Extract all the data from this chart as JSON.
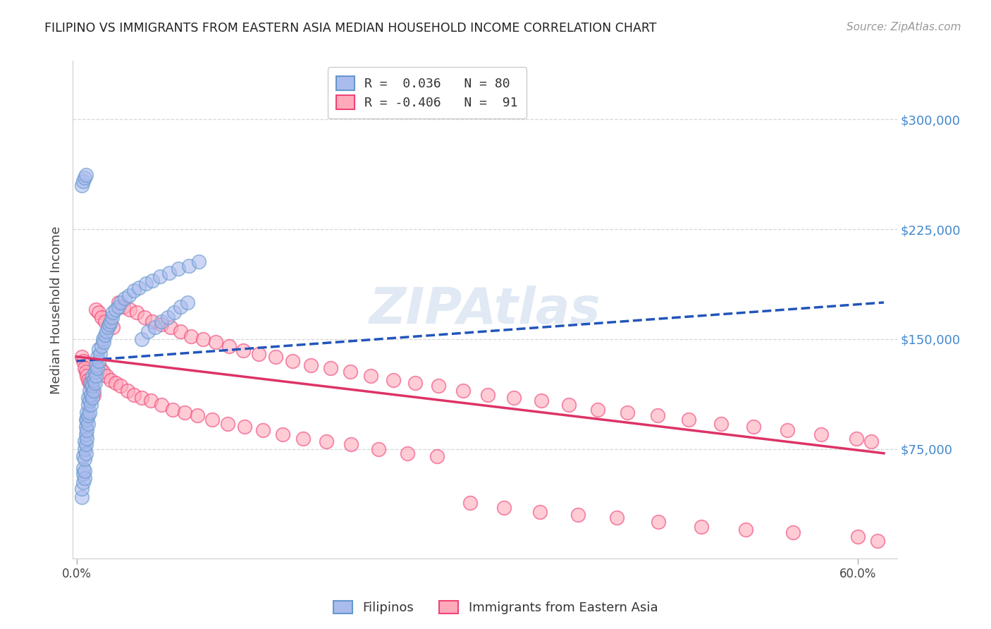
{
  "title": "FILIPINO VS IMMIGRANTS FROM EASTERN ASIA MEDIAN HOUSEHOLD INCOME CORRELATION CHART",
  "source": "Source: ZipAtlas.com",
  "ylabel": "Median Household Income",
  "yticks": [
    75000,
    150000,
    225000,
    300000
  ],
  "ytick_labels": [
    "$75,000",
    "$150,000",
    "$225,000",
    "$300,000"
  ],
  "ymin": 0,
  "ymax": 340000,
  "xmin": -0.003,
  "xmax": 0.63,
  "filipinos_label": "Filipinos",
  "immigrants_label": "Immigrants from Eastern Asia",
  "blue_color_face": "#aabbee",
  "blue_color_edge": "#6699cc",
  "pink_color_face": "#ffaabb",
  "pink_color_edge": "#ee4477",
  "blue_line_color": "#2255bb",
  "pink_line_color": "#dd3366",
  "watermark_color": "#c8d8ec",
  "blue_scatter_x": [
    0.004,
    0.004,
    0.005,
    0.005,
    0.005,
    0.005,
    0.006,
    0.006,
    0.006,
    0.006,
    0.006,
    0.007,
    0.007,
    0.007,
    0.007,
    0.007,
    0.008,
    0.008,
    0.008,
    0.008,
    0.009,
    0.009,
    0.009,
    0.009,
    0.01,
    0.01,
    0.01,
    0.011,
    0.011,
    0.011,
    0.012,
    0.012,
    0.012,
    0.013,
    0.013,
    0.014,
    0.014,
    0.015,
    0.015,
    0.016,
    0.016,
    0.017,
    0.017,
    0.018,
    0.019,
    0.02,
    0.021,
    0.022,
    0.023,
    0.024,
    0.025,
    0.026,
    0.027,
    0.028,
    0.03,
    0.032,
    0.034,
    0.037,
    0.04,
    0.044,
    0.048,
    0.053,
    0.058,
    0.064,
    0.071,
    0.078,
    0.086,
    0.094,
    0.05,
    0.055,
    0.06,
    0.065,
    0.07,
    0.075,
    0.08,
    0.085,
    0.004,
    0.005,
    0.006,
    0.007
  ],
  "blue_scatter_y": [
    42000,
    48000,
    52000,
    58000,
    62000,
    70000,
    55000,
    60000,
    68000,
    75000,
    80000,
    72000,
    78000,
    85000,
    90000,
    95000,
    82000,
    88000,
    95000,
    100000,
    92000,
    98000,
    105000,
    110000,
    100000,
    108000,
    115000,
    105000,
    112000,
    120000,
    110000,
    118000,
    125000,
    115000,
    122000,
    120000,
    128000,
    125000,
    132000,
    130000,
    138000,
    135000,
    143000,
    140000,
    145000,
    150000,
    148000,
    153000,
    155000,
    158000,
    160000,
    162000,
    165000,
    168000,
    170000,
    172000,
    175000,
    178000,
    180000,
    183000,
    185000,
    188000,
    190000,
    193000,
    195000,
    198000,
    200000,
    203000,
    150000,
    155000,
    158000,
    162000,
    165000,
    168000,
    172000,
    175000,
    255000,
    258000,
    260000,
    262000
  ],
  "pink_scatter_x": [
    0.004,
    0.005,
    0.006,
    0.007,
    0.008,
    0.009,
    0.01,
    0.011,
    0.012,
    0.013,
    0.015,
    0.017,
    0.019,
    0.022,
    0.025,
    0.028,
    0.032,
    0.036,
    0.041,
    0.046,
    0.052,
    0.058,
    0.065,
    0.072,
    0.08,
    0.088,
    0.097,
    0.107,
    0.117,
    0.128,
    0.14,
    0.153,
    0.166,
    0.18,
    0.195,
    0.21,
    0.226,
    0.243,
    0.26,
    0.278,
    0.297,
    0.316,
    0.336,
    0.357,
    0.378,
    0.4,
    0.423,
    0.446,
    0.47,
    0.495,
    0.52,
    0.546,
    0.572,
    0.599,
    0.61,
    0.018,
    0.02,
    0.023,
    0.026,
    0.03,
    0.034,
    0.039,
    0.044,
    0.05,
    0.057,
    0.065,
    0.074,
    0.083,
    0.093,
    0.104,
    0.116,
    0.129,
    0.143,
    0.158,
    0.174,
    0.192,
    0.211,
    0.232,
    0.254,
    0.277,
    0.302,
    0.328,
    0.356,
    0.385,
    0.415,
    0.447,
    0.48,
    0.514,
    0.55,
    0.6,
    0.615
  ],
  "pink_scatter_y": [
    138000,
    135000,
    130000,
    128000,
    125000,
    122000,
    120000,
    118000,
    115000,
    112000,
    170000,
    168000,
    165000,
    162000,
    160000,
    158000,
    175000,
    172000,
    170000,
    168000,
    165000,
    162000,
    160000,
    158000,
    155000,
    152000,
    150000,
    148000,
    145000,
    142000,
    140000,
    138000,
    135000,
    132000,
    130000,
    128000,
    125000,
    122000,
    120000,
    118000,
    115000,
    112000,
    110000,
    108000,
    105000,
    102000,
    100000,
    98000,
    95000,
    92000,
    90000,
    88000,
    85000,
    82000,
    80000,
    130000,
    128000,
    125000,
    122000,
    120000,
    118000,
    115000,
    112000,
    110000,
    108000,
    105000,
    102000,
    100000,
    98000,
    95000,
    92000,
    90000,
    88000,
    85000,
    82000,
    80000,
    78000,
    75000,
    72000,
    70000,
    38000,
    35000,
    32000,
    30000,
    28000,
    25000,
    22000,
    20000,
    18000,
    15000,
    12000
  ]
}
